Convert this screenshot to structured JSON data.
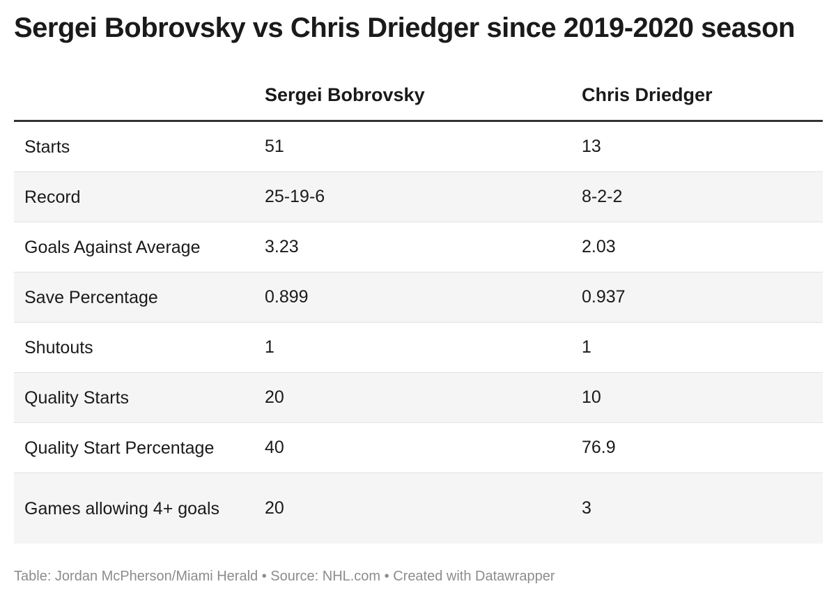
{
  "title": "Sergei Bobrovsky vs Chris Driedger since 2019-2020 season",
  "table": {
    "columns": [
      "",
      "Sergei Bobrovsky",
      "Chris Driedger"
    ],
    "rows": [
      [
        "Starts",
        "51",
        "13"
      ],
      [
        "Record",
        "25-19-6",
        "8-2-2"
      ],
      [
        "Goals Against Average",
        "3.23",
        "2.03"
      ],
      [
        "Save Percentage",
        "0.899",
        "0.937"
      ],
      [
        "Shutouts",
        "1",
        "1"
      ],
      [
        "Quality Starts",
        "20",
        "10"
      ],
      [
        "Quality Start Percentage",
        "40",
        "76.9"
      ],
      [
        "Games allowing 4+ goals",
        "20",
        "3"
      ]
    ]
  },
  "footer": "Table: Jordan McPherson/Miami Herald • Source: NHL.com • Created with Datawrapper"
}
